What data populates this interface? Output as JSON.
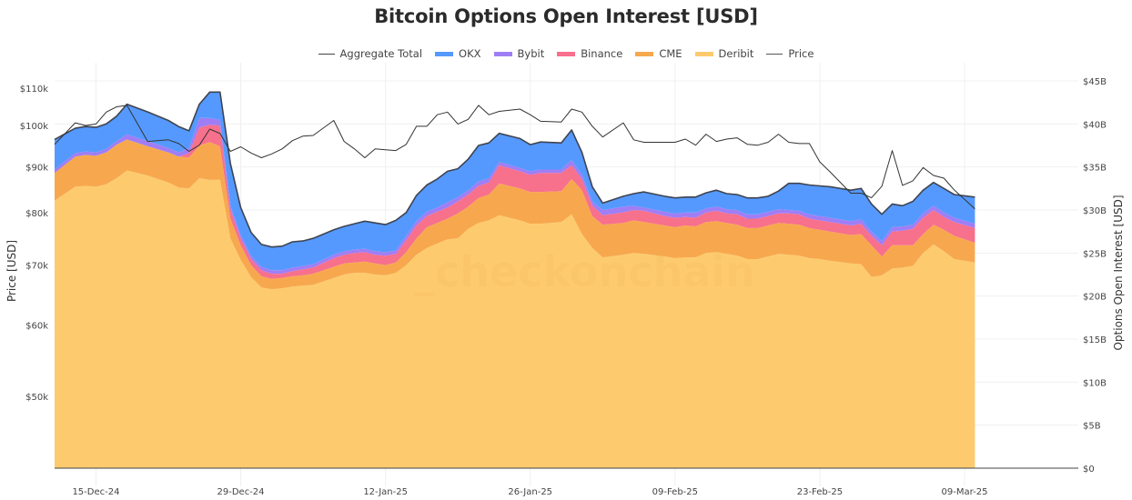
{
  "chart_data": {
    "type": "area",
    "stacked": true,
    "title": "Bitcoin Options Open Interest [USD]",
    "xlabel": "",
    "ylabel_left": "Price [USD]",
    "ylabel_right": "Options Open Interest [USD]",
    "watermark": "_checkonchain",
    "x_start": "11-Dec-24",
    "x_end": "10-Mar-25",
    "x_range_days": [
      0,
      99
    ],
    "x_ticks": [
      {
        "label": "15-Dec-24",
        "day": 4
      },
      {
        "label": "29-Dec-24",
        "day": 18
      },
      {
        "label": "12-Jan-25",
        "day": 32
      },
      {
        "label": "26-Jan-25",
        "day": 46
      },
      {
        "label": "09-Feb-25",
        "day": 60
      },
      {
        "label": "23-Feb-25",
        "day": 74
      },
      {
        "label": "09-Mar-25",
        "day": 88
      }
    ],
    "y_left": {
      "scale": "log",
      "range": [
        41600,
        112100
      ],
      "ticks": [
        {
          "label": "$50k",
          "value": 50000
        },
        {
          "label": "$60k",
          "value": 60000
        },
        {
          "label": "$70k",
          "value": 70000
        },
        {
          "label": "$80k",
          "value": 80000
        },
        {
          "label": "$90k",
          "value": 90000
        },
        {
          "label": "$100k",
          "value": 100000
        },
        {
          "label": "$110k",
          "value": 110000
        }
      ]
    },
    "y_right": {
      "scale": "linear",
      "range": [
        0,
        45
      ],
      "ticks": [
        {
          "label": "$0",
          "value": 0
        },
        {
          "label": "$5B",
          "value": 5
        },
        {
          "label": "$10B",
          "value": 10
        },
        {
          "label": "$15B",
          "value": 15
        },
        {
          "label": "$20B",
          "value": 20
        },
        {
          "label": "$25B",
          "value": 25
        },
        {
          "label": "$30B",
          "value": 30
        },
        {
          "label": "$35B",
          "value": 35
        },
        {
          "label": "$40B",
          "value": 40
        },
        {
          "label": "$45B",
          "value": 45
        }
      ]
    },
    "legend": [
      {
        "name": "Aggregate Total",
        "kind": "line",
        "color": "#444444"
      },
      {
        "name": "OKX",
        "kind": "area",
        "color": "#5599ff"
      },
      {
        "name": "Bybit",
        "kind": "area",
        "color": "#9f7ef5"
      },
      {
        "name": "Binance",
        "kind": "area",
        "color": "#f7708c"
      },
      {
        "name": "CME",
        "kind": "area",
        "color": "#f7a84e"
      },
      {
        "name": "Deribit",
        "kind": "area",
        "color": "#fdcb6e"
      },
      {
        "name": "Price",
        "kind": "line",
        "color": "#555555"
      }
    ],
    "legend_position": "top-center",
    "days": [
      0,
      2,
      3,
      4,
      5,
      6,
      7,
      9,
      11,
      12,
      13,
      14,
      15,
      16,
      17,
      18,
      19,
      20,
      21,
      22,
      23,
      24,
      25,
      27,
      28,
      29,
      30,
      31,
      32,
      33,
      34,
      35,
      36,
      37,
      38,
      39,
      40,
      41,
      42,
      43,
      45,
      46,
      47,
      49,
      50,
      51,
      52,
      53,
      55,
      56,
      57,
      59,
      60,
      61,
      62,
      63,
      64,
      65,
      66,
      67,
      68,
      69,
      70,
      71,
      72,
      73,
      74,
      75,
      77,
      78,
      79,
      80,
      81,
      82,
      83,
      84,
      85,
      86,
      87,
      89
    ],
    "series": [
      {
        "name": "Deribit",
        "unit": "USD billions",
        "values": [
          31.1,
          32.7,
          32.8,
          32.7,
          33.0,
          33.7,
          34.6,
          34.0,
          33.2,
          32.6,
          32.5,
          33.7,
          33.5,
          33.5,
          26.7,
          24.2,
          22.2,
          21.0,
          20.8,
          20.9,
          21.1,
          21.2,
          21.3,
          22.1,
          22.5,
          22.7,
          22.7,
          22.5,
          22.4,
          22.7,
          23.6,
          24.8,
          25.6,
          26.1,
          26.6,
          26.7,
          27.8,
          28.5,
          28.8,
          29.4,
          28.8,
          28.4,
          28.4,
          28.6,
          29.5,
          27.2,
          25.6,
          24.5,
          24.8,
          25.0,
          24.9,
          24.6,
          24.4,
          24.5,
          24.5,
          25.0,
          25.1,
          24.9,
          24.7,
          24.3,
          24.3,
          24.6,
          24.9,
          24.8,
          24.7,
          24.4,
          24.3,
          24.1,
          23.8,
          23.7,
          22.2,
          22.4,
          23.2,
          23.3,
          23.5,
          25.0,
          26.0,
          25.2,
          24.3,
          23.9
        ]
      },
      {
        "name": "CME",
        "unit": "USD billions",
        "values": [
          3.2,
          3.5,
          3.6,
          3.6,
          3.7,
          3.9,
          3.6,
          3.4,
          3.5,
          3.6,
          3.6,
          3.8,
          4.4,
          3.9,
          2.3,
          1.7,
          1.4,
          1.3,
          1.2,
          1.2,
          1.2,
          1.2,
          1.3,
          1.3,
          1.3,
          1.2,
          1.3,
          1.3,
          1.2,
          1.2,
          1.5,
          1.9,
          2.4,
          2.4,
          2.4,
          2.9,
          2.6,
          2.9,
          3.0,
          3.7,
          3.7,
          3.7,
          3.7,
          3.6,
          4.1,
          5.1,
          3.7,
          3.8,
          3.7,
          3.8,
          3.7,
          3.6,
          3.6,
          3.7,
          3.6,
          3.6,
          3.6,
          3.6,
          3.6,
          3.6,
          3.6,
          3.6,
          3.6,
          3.6,
          3.6,
          3.5,
          3.4,
          3.4,
          3.3,
          3.5,
          3.7,
          2.2,
          2.7,
          2.6,
          2.4,
          2.2,
          2.3,
          2.5,
          2.7,
          2.3
        ]
      },
      {
        "name": "Binance",
        "unit": "USD billions",
        "values": [
          0,
          0,
          0,
          0,
          0,
          0,
          0,
          0,
          0,
          0,
          0.5,
          2.1,
          2.0,
          2.4,
          1.1,
          0.8,
          0.7,
          0.7,
          0.6,
          0.5,
          0.6,
          0.7,
          0.7,
          1.0,
          1.0,
          1.1,
          1.1,
          1.0,
          1.1,
          1.0,
          1.4,
          1.5,
          1.3,
          1.3,
          1.3,
          1.4,
          1.4,
          1.4,
          1.4,
          2.1,
          2.0,
          2.0,
          2.2,
          2.1,
          1.6,
          1.3,
          1.2,
          1.1,
          1.2,
          1.2,
          1.3,
          1.1,
          1.1,
          1.0,
          1.0,
          1.1,
          1.2,
          1.1,
          1.2,
          1.1,
          1.1,
          1.1,
          1.1,
          1.2,
          1.2,
          1.1,
          1.1,
          1.1,
          1.1,
          1.2,
          1.1,
          1.3,
          1.6,
          1.7,
          1.9,
          1.9,
          1.7,
          1.5,
          1.6,
          1.7
        ]
      },
      {
        "name": "Bybit",
        "unit": "USD billions",
        "values": [
          0.4,
          0.4,
          0.4,
          0.4,
          0.4,
          0.4,
          0.6,
          0.6,
          0.5,
          0.5,
          0.6,
          1.1,
          0.8,
          0.7,
          0.4,
          0.4,
          0.4,
          0.4,
          0.4,
          0.4,
          0.4,
          0.4,
          0.4,
          0.4,
          0.4,
          0.4,
          0.4,
          0.4,
          0.4,
          0.4,
          0.5,
          0.5,
          0.5,
          0.5,
          0.6,
          0.5,
          0.5,
          0.5,
          0.5,
          0.4,
          0.4,
          0.4,
          0.4,
          0.4,
          0.6,
          0.5,
          0.5,
          0.6,
          0.7,
          0.5,
          0.4,
          0.5,
          0.5,
          0.5,
          0.6,
          0.5,
          0.5,
          0.5,
          0.5,
          0.5,
          0.5,
          0.5,
          0.5,
          0.4,
          0.4,
          0.5,
          0.5,
          0.5,
          0.5,
          0.5,
          0.5,
          0.5,
          0.5,
          0.5,
          0.5,
          0.5,
          0.5,
          0.5,
          0.5,
          0.5
        ]
      },
      {
        "name": "OKX",
        "unit": "USD billions",
        "values": [
          3.5,
          2.9,
          2.9,
          2.9,
          2.9,
          2.9,
          3.5,
          3.4,
          3.2,
          3.0,
          2.0,
          1.6,
          3.0,
          3.2,
          4.9,
          3.2,
          2.7,
          2.6,
          2.7,
          2.8,
          3.0,
          2.9,
          3.0,
          2.9,
          2.9,
          3.0,
          3.2,
          3.3,
          3.2,
          3.5,
          2.7,
          3.0,
          3.1,
          3.3,
          3.6,
          3.3,
          3.6,
          4.2,
          4.1,
          3.3,
          3.4,
          3.1,
          3.2,
          3.1,
          3.5,
          2.6,
          1.7,
          0.8,
          1.2,
          1.4,
          1.8,
          1.8,
          1.8,
          1.8,
          1.8,
          1.8,
          1.9,
          1.8,
          1.8,
          1.9,
          1.9,
          1.8,
          2.1,
          3.1,
          3.2,
          3.4,
          3.5,
          3.6,
          3.6,
          3.6,
          3.2,
          3.1,
          2.7,
          2.4,
          2.7,
          2.7,
          2.7,
          2.8,
          2.7,
          3.1
        ]
      },
      {
        "name": "Price",
        "unit": "USD",
        "values": [
          95300,
          100700,
          100000,
          100400,
          103500,
          104900,
          105300,
          96000,
          96400,
          95500,
          93600,
          95100,
          99100,
          98000,
          93600,
          94700,
          93200,
          92100,
          93000,
          94200,
          96200,
          97300,
          97500,
          101300,
          96000,
          94200,
          92100,
          94200,
          94000,
          93800,
          95300,
          99800,
          99800,
          102800,
          103500,
          100400,
          101600,
          105300,
          102800,
          103700,
          104300,
          102800,
          101100,
          100900,
          104300,
          103500,
          99800,
          97100,
          100700,
          96400,
          95800,
          95800,
          95800,
          96600,
          95100,
          97800,
          96000,
          96600,
          96900,
          95300,
          95100,
          95800,
          97800,
          95800,
          95500,
          95500,
          91100,
          88800,
          84100,
          84100,
          83100,
          85600,
          93800,
          85800,
          86800,
          89800,
          88000,
          87400,
          84800,
          80800
        ]
      }
    ]
  }
}
